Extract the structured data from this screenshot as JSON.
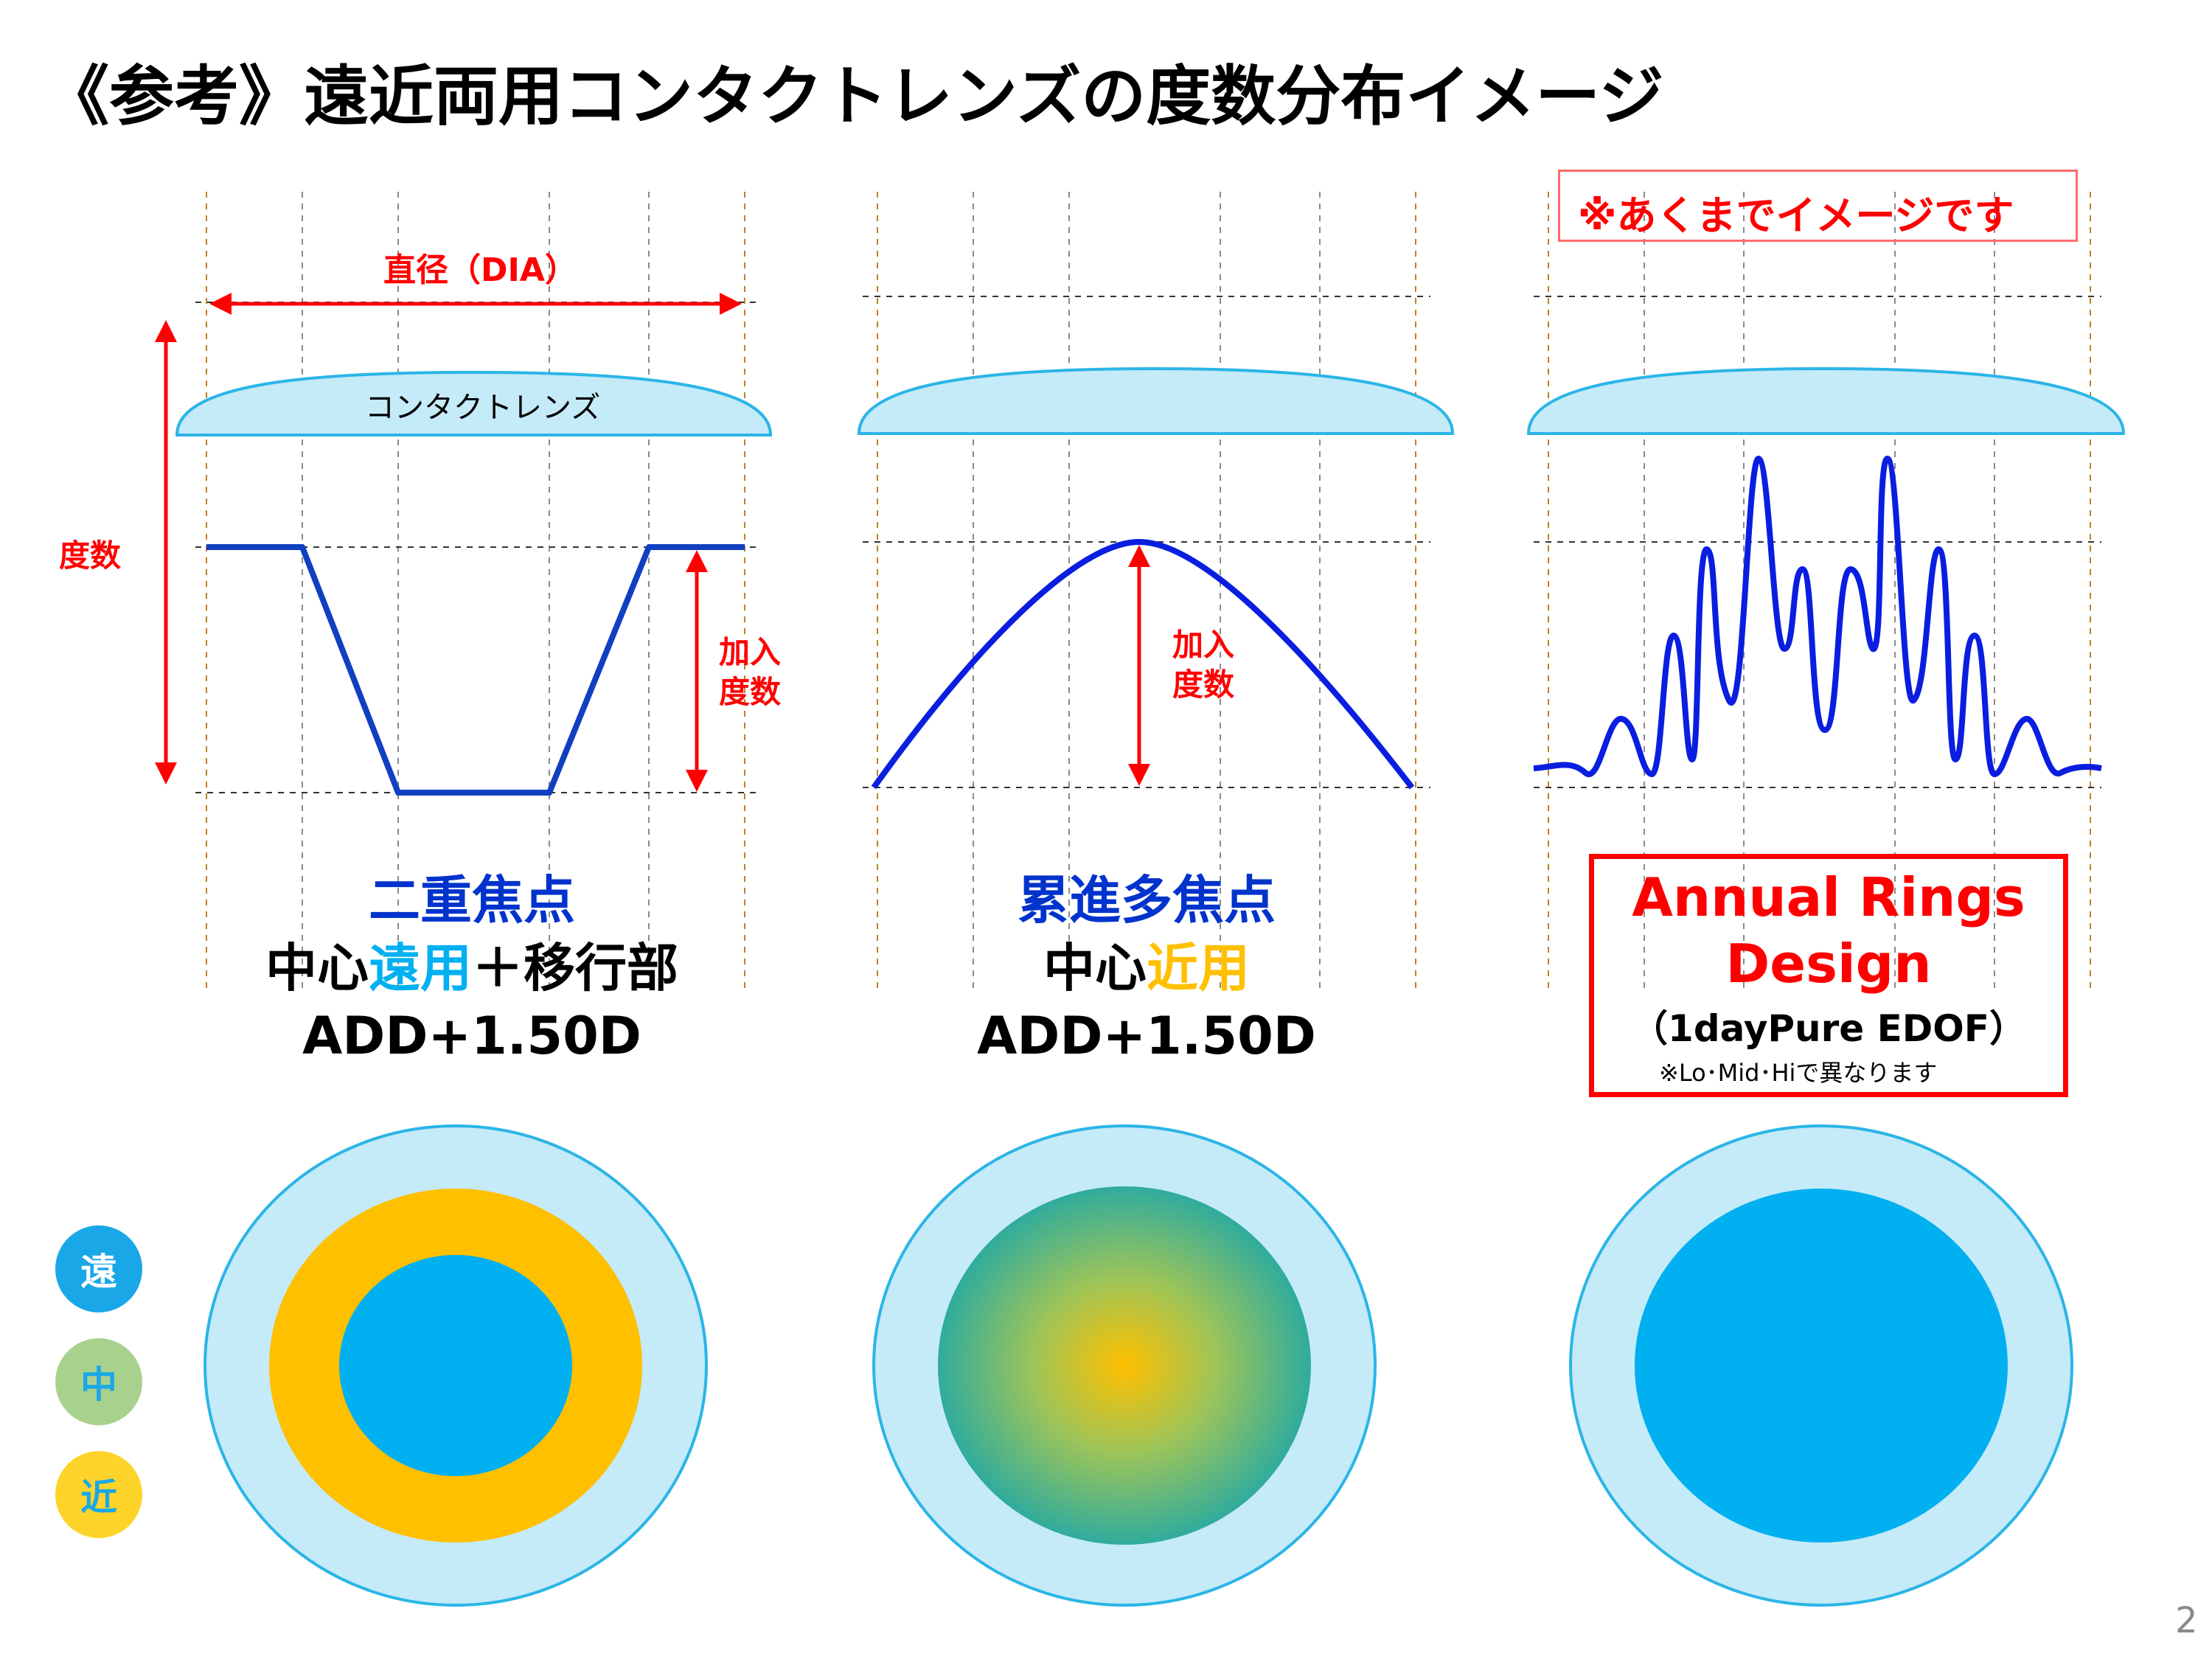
{
  "title": "《参考》遠近両用コンタクトレンズの度数分布イメージ",
  "labels": {
    "diameter": "直径（DIA）",
    "power": "度数",
    "add_power_line1": "加入",
    "add_power_line2": "度数",
    "lens": "コンタクトレンズ",
    "note": "※あくまでイメージです"
  },
  "panels": [
    {
      "name_line": "二重焦点",
      "desc_part1": "中心",
      "desc_highlight": "遠用",
      "desc_part2": "＋移行部",
      "add": "ADD+1.50D"
    },
    {
      "name_line": "累進多焦点",
      "desc_part1": "中心",
      "desc_highlight": "近用",
      "desc_part2": "",
      "add": "ADD+1.50D"
    },
    {
      "name_line1": "Annual Rings",
      "name_line2": "Design",
      "product": "（1dayPure EDOF）",
      "footnote": "※Lo･Mid･Hiで異なります"
    }
  ],
  "legend": [
    {
      "label": "遠",
      "color": "#1aa7e8"
    },
    {
      "label": "中",
      "color": "#a9d18e"
    },
    {
      "label": "近",
      "color": "#ffd42a"
    }
  ],
  "colors": {
    "red": "#ff0000",
    "curve": "#0033cc",
    "lens_fill": "#c5eaf8",
    "lens_stroke": "#2bb5e6",
    "far": "#00b0f0",
    "near": "#ffc000",
    "title_blue": "#0033cc"
  },
  "page_number": "2"
}
